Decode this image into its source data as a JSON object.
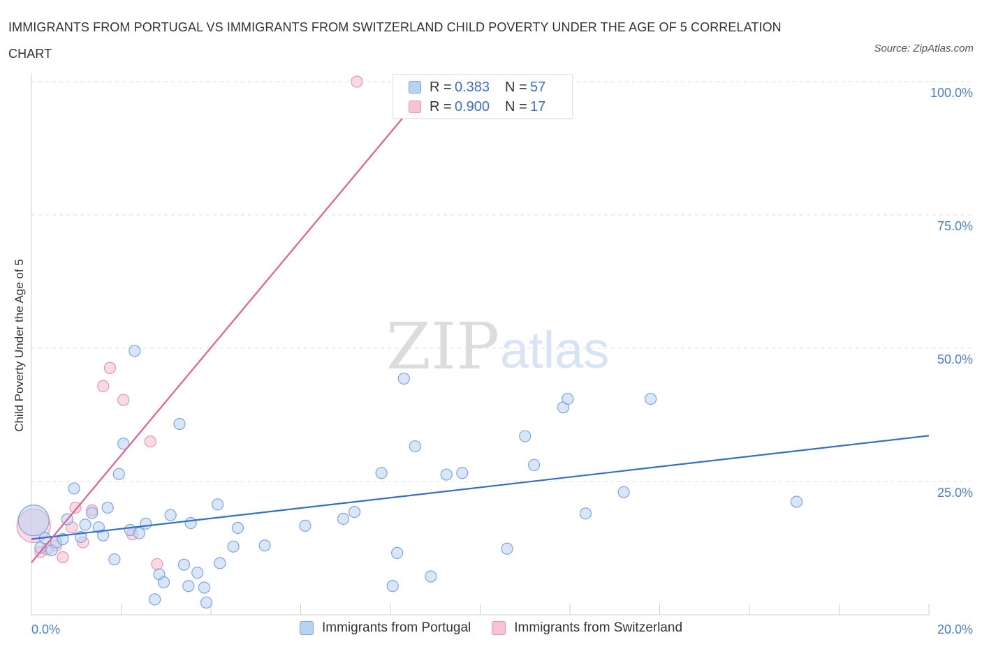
{
  "title": "IMMIGRANTS FROM PORTUGAL VS IMMIGRANTS FROM SWITZERLAND CHILD POVERTY UNDER THE AGE OF 5 CORRELATION CHART",
  "source": "Source: ZipAtlas.com",
  "watermark": {
    "zip": "ZIP",
    "atlas": "atlas"
  },
  "legend": {
    "rows": [
      {
        "r_label": "R =",
        "r_value": "0.383",
        "n_label": "N =",
        "n_value": "57"
      },
      {
        "r_label": "R =",
        "r_value": "0.900",
        "n_label": "N =",
        "n_value": "17"
      }
    ]
  },
  "colors": {
    "portugal_fill": "#b9d2f3",
    "portugal_stroke": "#7aa6e0",
    "portugal_line": "#2f6fd0",
    "switzerland_fill": "#f7c3d4",
    "switzerland_stroke": "#e894b0",
    "switzerland_line": "#e2608a"
  },
  "chart_data": {
    "type": "scatter",
    "title": "IMMIGRANTS FROM PORTUGAL VS IMMIGRANTS FROM SWITZERLAND CHILD POVERTY UNDER THE AGE OF 5 CORRELATION CHART",
    "xlabel": "",
    "ylabel": "Child Poverty Under the Age of 5",
    "xlim": [
      0,
      20
    ],
    "ylim": [
      0,
      100
    ],
    "x_ticks": [
      "0.0%",
      "20.0%"
    ],
    "y_ticks": [
      {
        "value": 25,
        "label": "25.0%"
      },
      {
        "value": 50,
        "label": "50.0%"
      },
      {
        "value": 75,
        "label": "75.0%"
      },
      {
        "value": 100,
        "label": "100.0%"
      }
    ],
    "grid": true,
    "legend_position": "top-center",
    "series": [
      {
        "name": "Immigrants from Portugal",
        "trend": {
          "x": [
            0,
            20
          ],
          "y": [
            14.2,
            33.6
          ]
        },
        "points": [
          {
            "x": 0.05,
            "y": 17.7,
            "big": true
          },
          {
            "x": 0.2,
            "y": 12.6
          },
          {
            "x": 0.3,
            "y": 14.4
          },
          {
            "x": 0.45,
            "y": 12.1
          },
          {
            "x": 0.55,
            "y": 13.6
          },
          {
            "x": 0.7,
            "y": 14.2
          },
          {
            "x": 0.8,
            "y": 17.9
          },
          {
            "x": 0.95,
            "y": 23.7
          },
          {
            "x": 1.1,
            "y": 14.6
          },
          {
            "x": 1.2,
            "y": 16.9
          },
          {
            "x": 1.35,
            "y": 19.1
          },
          {
            "x": 1.5,
            "y": 16.4
          },
          {
            "x": 1.6,
            "y": 14.9
          },
          {
            "x": 1.7,
            "y": 20.1
          },
          {
            "x": 1.85,
            "y": 10.4
          },
          {
            "x": 1.95,
            "y": 26.4
          },
          {
            "x": 2.05,
            "y": 32.1
          },
          {
            "x": 2.2,
            "y": 15.9
          },
          {
            "x": 2.3,
            "y": 49.5
          },
          {
            "x": 2.4,
            "y": 15.3
          },
          {
            "x": 2.55,
            "y": 17.1
          },
          {
            "x": 2.75,
            "y": 2.9
          },
          {
            "x": 2.85,
            "y": 7.6
          },
          {
            "x": 2.95,
            "y": 6.1
          },
          {
            "x": 3.1,
            "y": 18.7
          },
          {
            "x": 3.3,
            "y": 35.8
          },
          {
            "x": 3.4,
            "y": 9.4
          },
          {
            "x": 3.5,
            "y": 5.4
          },
          {
            "x": 3.55,
            "y": 17.2
          },
          {
            "x": 3.7,
            "y": 7.9
          },
          {
            "x": 3.85,
            "y": 5.1
          },
          {
            "x": 3.9,
            "y": 2.3
          },
          {
            "x": 4.15,
            "y": 20.7
          },
          {
            "x": 4.2,
            "y": 9.7
          },
          {
            "x": 4.5,
            "y": 12.8
          },
          {
            "x": 4.6,
            "y": 16.3
          },
          {
            "x": 5.2,
            "y": 13.0
          },
          {
            "x": 6.1,
            "y": 16.7
          },
          {
            "x": 6.95,
            "y": 18.0
          },
          {
            "x": 7.2,
            "y": 19.3
          },
          {
            "x": 7.8,
            "y": 26.6
          },
          {
            "x": 8.05,
            "y": 5.4
          },
          {
            "x": 8.15,
            "y": 11.6
          },
          {
            "x": 8.3,
            "y": 44.3
          },
          {
            "x": 8.55,
            "y": 31.6
          },
          {
            "x": 8.9,
            "y": 7.2
          },
          {
            "x": 9.25,
            "y": 26.3
          },
          {
            "x": 9.6,
            "y": 26.6
          },
          {
            "x": 10.6,
            "y": 12.4
          },
          {
            "x": 11.0,
            "y": 33.5
          },
          {
            "x": 11.2,
            "y": 28.1
          },
          {
            "x": 11.85,
            "y": 38.9
          },
          {
            "x": 11.95,
            "y": 40.5
          },
          {
            "x": 12.35,
            "y": 19.0
          },
          {
            "x": 13.2,
            "y": 23.0
          },
          {
            "x": 13.8,
            "y": 40.5
          },
          {
            "x": 17.05,
            "y": 21.2
          }
        ]
      },
      {
        "name": "Immigrants from Switzerland",
        "trend": {
          "x": [
            0,
            8.95
          ],
          "y": [
            9.8,
            100.0
          ]
        },
        "points": [
          {
            "x": 0.05,
            "y": 16.7,
            "big": true
          },
          {
            "x": 0.2,
            "y": 11.8
          },
          {
            "x": 0.35,
            "y": 12.3
          },
          {
            "x": 0.55,
            "y": 13.0
          },
          {
            "x": 0.7,
            "y": 10.8
          },
          {
            "x": 0.9,
            "y": 16.4
          },
          {
            "x": 0.98,
            "y": 20.1
          },
          {
            "x": 1.15,
            "y": 13.6
          },
          {
            "x": 1.35,
            "y": 19.6
          },
          {
            "x": 1.6,
            "y": 42.9
          },
          {
            "x": 1.75,
            "y": 46.3
          },
          {
            "x": 2.05,
            "y": 40.3
          },
          {
            "x": 2.25,
            "y": 15.1
          },
          {
            "x": 2.65,
            "y": 32.5
          },
          {
            "x": 2.8,
            "y": 9.5
          },
          {
            "x": 7.25,
            "y": 100.0
          },
          {
            "x": 10.15,
            "y": 100.0
          }
        ]
      }
    ]
  },
  "bottom_legend": [
    "Immigrants from Portugal",
    "Immigrants from Switzerland"
  ]
}
